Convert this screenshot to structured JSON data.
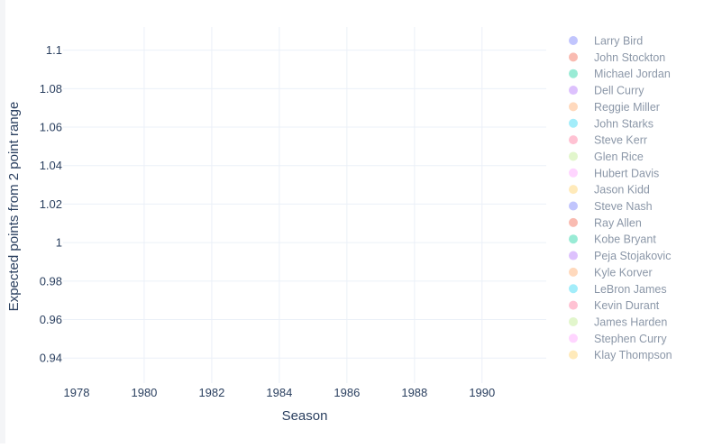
{
  "chart_data": {
    "type": "scatter",
    "xlabel": "Season",
    "ylabel": "Expected points from 2 point range",
    "xlim": [
      1977.6,
      1991.9
    ],
    "ylim": [
      0.927,
      1.112
    ],
    "xticks": [
      1978,
      1980,
      1982,
      1984,
      1986,
      1988,
      1990
    ],
    "yticks": [
      0.94,
      0.96,
      0.98,
      1,
      1.02,
      1.04,
      1.06,
      1.08,
      1.1
    ],
    "ytick_labels": [
      "0.94",
      "0.96",
      "0.98",
      "1",
      "1.02",
      "1.04",
      "1.06",
      "1.08",
      "1.1"
    ],
    "grid": true,
    "legend_position": "right",
    "series": [
      {
        "name": "Larry Bird",
        "color": "#636efa",
        "x": [],
        "y": []
      },
      {
        "name": "John Stockton",
        "color": "#ef553b",
        "x": [],
        "y": []
      },
      {
        "name": "Michael Jordan",
        "color": "#00cc96",
        "x": [],
        "y": []
      },
      {
        "name": "Dell Curry",
        "color": "#ab63fa",
        "x": [],
        "y": []
      },
      {
        "name": "Reggie Miller",
        "color": "#ffa15a",
        "x": [],
        "y": []
      },
      {
        "name": "John Starks",
        "color": "#19d3f3",
        "x": [],
        "y": []
      },
      {
        "name": "Steve Kerr",
        "color": "#ff6692",
        "x": [],
        "y": []
      },
      {
        "name": "Glen Rice",
        "color": "#b6e880",
        "x": [],
        "y": []
      },
      {
        "name": "Hubert Davis",
        "color": "#ff97ff",
        "x": [],
        "y": []
      },
      {
        "name": "Jason Kidd",
        "color": "#fecb52",
        "x": [],
        "y": []
      },
      {
        "name": "Steve Nash",
        "color": "#636efa",
        "x": [],
        "y": []
      },
      {
        "name": "Ray Allen",
        "color": "#ef553b",
        "x": [],
        "y": []
      },
      {
        "name": "Kobe Bryant",
        "color": "#00cc96",
        "x": [],
        "y": []
      },
      {
        "name": "Peja Stojakovic",
        "color": "#ab63fa",
        "x": [],
        "y": []
      },
      {
        "name": "Kyle Korver",
        "color": "#ffa15a",
        "x": [],
        "y": []
      },
      {
        "name": "LeBron James",
        "color": "#19d3f3",
        "x": [],
        "y": []
      },
      {
        "name": "Kevin Durant",
        "color": "#ff6692",
        "x": [],
        "y": []
      },
      {
        "name": "James Harden",
        "color": "#b6e880",
        "x": [],
        "y": []
      },
      {
        "name": "Stephen Curry",
        "color": "#ff97ff",
        "x": [],
        "y": []
      },
      {
        "name": "Klay Thompson",
        "color": "#fecb52",
        "x": [],
        "y": []
      }
    ]
  }
}
